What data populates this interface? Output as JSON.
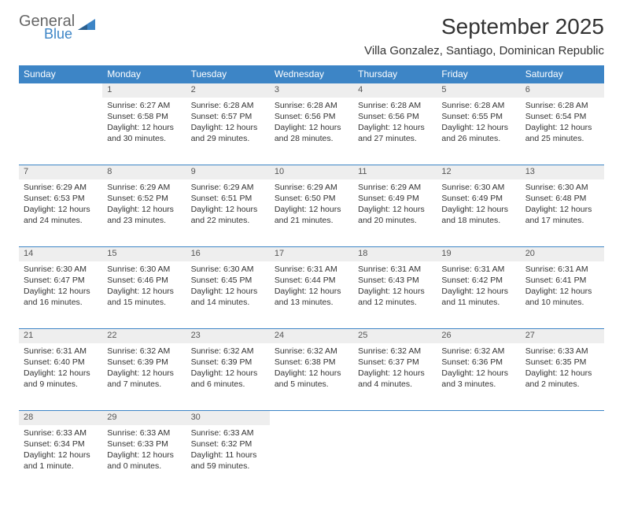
{
  "brand": {
    "line1": "General",
    "line2": "Blue",
    "accent_color": "#3d85c6",
    "text_color": "#666666"
  },
  "title": "September 2025",
  "subtitle": "Villa Gonzalez, Santiago, Dominican Republic",
  "header_bg": "#3d85c6",
  "header_fg": "#ffffff",
  "daynum_bg": "#eeeeee",
  "border_color": "#3d85c6",
  "day_labels": [
    "Sunday",
    "Monday",
    "Tuesday",
    "Wednesday",
    "Thursday",
    "Friday",
    "Saturday"
  ],
  "weeks": [
    [
      null,
      {
        "n": "1",
        "sunrise": "Sunrise: 6:27 AM",
        "sunset": "Sunset: 6:58 PM",
        "daylight": "Daylight: 12 hours and 30 minutes."
      },
      {
        "n": "2",
        "sunrise": "Sunrise: 6:28 AM",
        "sunset": "Sunset: 6:57 PM",
        "daylight": "Daylight: 12 hours and 29 minutes."
      },
      {
        "n": "3",
        "sunrise": "Sunrise: 6:28 AM",
        "sunset": "Sunset: 6:56 PM",
        "daylight": "Daylight: 12 hours and 28 minutes."
      },
      {
        "n": "4",
        "sunrise": "Sunrise: 6:28 AM",
        "sunset": "Sunset: 6:56 PM",
        "daylight": "Daylight: 12 hours and 27 minutes."
      },
      {
        "n": "5",
        "sunrise": "Sunrise: 6:28 AM",
        "sunset": "Sunset: 6:55 PM",
        "daylight": "Daylight: 12 hours and 26 minutes."
      },
      {
        "n": "6",
        "sunrise": "Sunrise: 6:28 AM",
        "sunset": "Sunset: 6:54 PM",
        "daylight": "Daylight: 12 hours and 25 minutes."
      }
    ],
    [
      {
        "n": "7",
        "sunrise": "Sunrise: 6:29 AM",
        "sunset": "Sunset: 6:53 PM",
        "daylight": "Daylight: 12 hours and 24 minutes."
      },
      {
        "n": "8",
        "sunrise": "Sunrise: 6:29 AM",
        "sunset": "Sunset: 6:52 PM",
        "daylight": "Daylight: 12 hours and 23 minutes."
      },
      {
        "n": "9",
        "sunrise": "Sunrise: 6:29 AM",
        "sunset": "Sunset: 6:51 PM",
        "daylight": "Daylight: 12 hours and 22 minutes."
      },
      {
        "n": "10",
        "sunrise": "Sunrise: 6:29 AM",
        "sunset": "Sunset: 6:50 PM",
        "daylight": "Daylight: 12 hours and 21 minutes."
      },
      {
        "n": "11",
        "sunrise": "Sunrise: 6:29 AM",
        "sunset": "Sunset: 6:49 PM",
        "daylight": "Daylight: 12 hours and 20 minutes."
      },
      {
        "n": "12",
        "sunrise": "Sunrise: 6:30 AM",
        "sunset": "Sunset: 6:49 PM",
        "daylight": "Daylight: 12 hours and 18 minutes."
      },
      {
        "n": "13",
        "sunrise": "Sunrise: 6:30 AM",
        "sunset": "Sunset: 6:48 PM",
        "daylight": "Daylight: 12 hours and 17 minutes."
      }
    ],
    [
      {
        "n": "14",
        "sunrise": "Sunrise: 6:30 AM",
        "sunset": "Sunset: 6:47 PM",
        "daylight": "Daylight: 12 hours and 16 minutes."
      },
      {
        "n": "15",
        "sunrise": "Sunrise: 6:30 AM",
        "sunset": "Sunset: 6:46 PM",
        "daylight": "Daylight: 12 hours and 15 minutes."
      },
      {
        "n": "16",
        "sunrise": "Sunrise: 6:30 AM",
        "sunset": "Sunset: 6:45 PM",
        "daylight": "Daylight: 12 hours and 14 minutes."
      },
      {
        "n": "17",
        "sunrise": "Sunrise: 6:31 AM",
        "sunset": "Sunset: 6:44 PM",
        "daylight": "Daylight: 12 hours and 13 minutes."
      },
      {
        "n": "18",
        "sunrise": "Sunrise: 6:31 AM",
        "sunset": "Sunset: 6:43 PM",
        "daylight": "Daylight: 12 hours and 12 minutes."
      },
      {
        "n": "19",
        "sunrise": "Sunrise: 6:31 AM",
        "sunset": "Sunset: 6:42 PM",
        "daylight": "Daylight: 12 hours and 11 minutes."
      },
      {
        "n": "20",
        "sunrise": "Sunrise: 6:31 AM",
        "sunset": "Sunset: 6:41 PM",
        "daylight": "Daylight: 12 hours and 10 minutes."
      }
    ],
    [
      {
        "n": "21",
        "sunrise": "Sunrise: 6:31 AM",
        "sunset": "Sunset: 6:40 PM",
        "daylight": "Daylight: 12 hours and 9 minutes."
      },
      {
        "n": "22",
        "sunrise": "Sunrise: 6:32 AM",
        "sunset": "Sunset: 6:39 PM",
        "daylight": "Daylight: 12 hours and 7 minutes."
      },
      {
        "n": "23",
        "sunrise": "Sunrise: 6:32 AM",
        "sunset": "Sunset: 6:39 PM",
        "daylight": "Daylight: 12 hours and 6 minutes."
      },
      {
        "n": "24",
        "sunrise": "Sunrise: 6:32 AM",
        "sunset": "Sunset: 6:38 PM",
        "daylight": "Daylight: 12 hours and 5 minutes."
      },
      {
        "n": "25",
        "sunrise": "Sunrise: 6:32 AM",
        "sunset": "Sunset: 6:37 PM",
        "daylight": "Daylight: 12 hours and 4 minutes."
      },
      {
        "n": "26",
        "sunrise": "Sunrise: 6:32 AM",
        "sunset": "Sunset: 6:36 PM",
        "daylight": "Daylight: 12 hours and 3 minutes."
      },
      {
        "n": "27",
        "sunrise": "Sunrise: 6:33 AM",
        "sunset": "Sunset: 6:35 PM",
        "daylight": "Daylight: 12 hours and 2 minutes."
      }
    ],
    [
      {
        "n": "28",
        "sunrise": "Sunrise: 6:33 AM",
        "sunset": "Sunset: 6:34 PM",
        "daylight": "Daylight: 12 hours and 1 minute."
      },
      {
        "n": "29",
        "sunrise": "Sunrise: 6:33 AM",
        "sunset": "Sunset: 6:33 PM",
        "daylight": "Daylight: 12 hours and 0 minutes."
      },
      {
        "n": "30",
        "sunrise": "Sunrise: 6:33 AM",
        "sunset": "Sunset: 6:32 PM",
        "daylight": "Daylight: 11 hours and 59 minutes."
      },
      null,
      null,
      null,
      null
    ]
  ]
}
